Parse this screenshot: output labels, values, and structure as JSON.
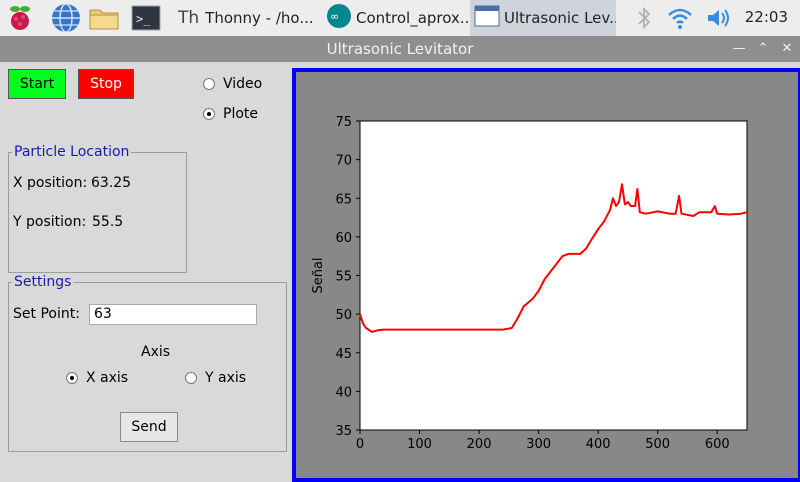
{
  "taskbar": {
    "tasks": [
      {
        "label": "Thonny  -  /ho..."
      },
      {
        "label": "Control_aprox..."
      },
      {
        "label": "Ultrasonic Lev..."
      }
    ],
    "clock": "22:03"
  },
  "window": {
    "title": "Ultrasonic Levitator"
  },
  "controls": {
    "start_label": "Start",
    "stop_label": "Stop",
    "mode_options": [
      {
        "label": "Video",
        "selected": false
      },
      {
        "label": "Plote",
        "selected": true
      }
    ]
  },
  "particle_location": {
    "title": "Particle Location",
    "x_label": "X position:",
    "x_value": "63.25",
    "y_label": "Y position:",
    "y_value": "55.5"
  },
  "settings": {
    "title": "Settings",
    "set_point_label": "Set Point:",
    "set_point_value": "63",
    "axis_label": "Axis",
    "axis_options": [
      {
        "label": "X axis",
        "selected": true
      },
      {
        "label": "Y axis",
        "selected": false
      }
    ],
    "send_label": "Send"
  },
  "chart_data": {
    "type": "line",
    "title": "",
    "xlabel": "",
    "ylabel": "Señal",
    "xlim": [
      0,
      650
    ],
    "ylim": [
      35,
      75
    ],
    "xticks": [
      0,
      100,
      200,
      300,
      400,
      500,
      600
    ],
    "yticks": [
      35,
      40,
      45,
      50,
      55,
      60,
      65,
      70,
      75
    ],
    "series": [
      {
        "color": "#ff0000",
        "points": [
          [
            0,
            50
          ],
          [
            5,
            48.8
          ],
          [
            10,
            48.2
          ],
          [
            20,
            47.7
          ],
          [
            30,
            47.9
          ],
          [
            40,
            48
          ],
          [
            60,
            48
          ],
          [
            100,
            48
          ],
          [
            150,
            48
          ],
          [
            200,
            48
          ],
          [
            240,
            48
          ],
          [
            255,
            48.2
          ],
          [
            265,
            49.5
          ],
          [
            275,
            51
          ],
          [
            290,
            52
          ],
          [
            300,
            53
          ],
          [
            310,
            54.5
          ],
          [
            320,
            55.5
          ],
          [
            330,
            56.5
          ],
          [
            340,
            57.5
          ],
          [
            350,
            57.8
          ],
          [
            370,
            57.8
          ],
          [
            380,
            58.5
          ],
          [
            390,
            59.8
          ],
          [
            400,
            61
          ],
          [
            410,
            62
          ],
          [
            420,
            63.5
          ],
          [
            425,
            65
          ],
          [
            430,
            64
          ],
          [
            435,
            64.5
          ],
          [
            440,
            66.8
          ],
          [
            445,
            64.2
          ],
          [
            450,
            64.5
          ],
          [
            455,
            64
          ],
          [
            462,
            64
          ],
          [
            466,
            66.2
          ],
          [
            470,
            63.2
          ],
          [
            480,
            63
          ],
          [
            500,
            63.3
          ],
          [
            520,
            63
          ],
          [
            530,
            63
          ],
          [
            536,
            65.3
          ],
          [
            540,
            63
          ],
          [
            560,
            62.7
          ],
          [
            570,
            63.2
          ],
          [
            590,
            63.2
          ],
          [
            596,
            64
          ],
          [
            600,
            63
          ],
          [
            620,
            62.9
          ],
          [
            640,
            63
          ],
          [
            650,
            63.2
          ]
        ]
      }
    ]
  }
}
